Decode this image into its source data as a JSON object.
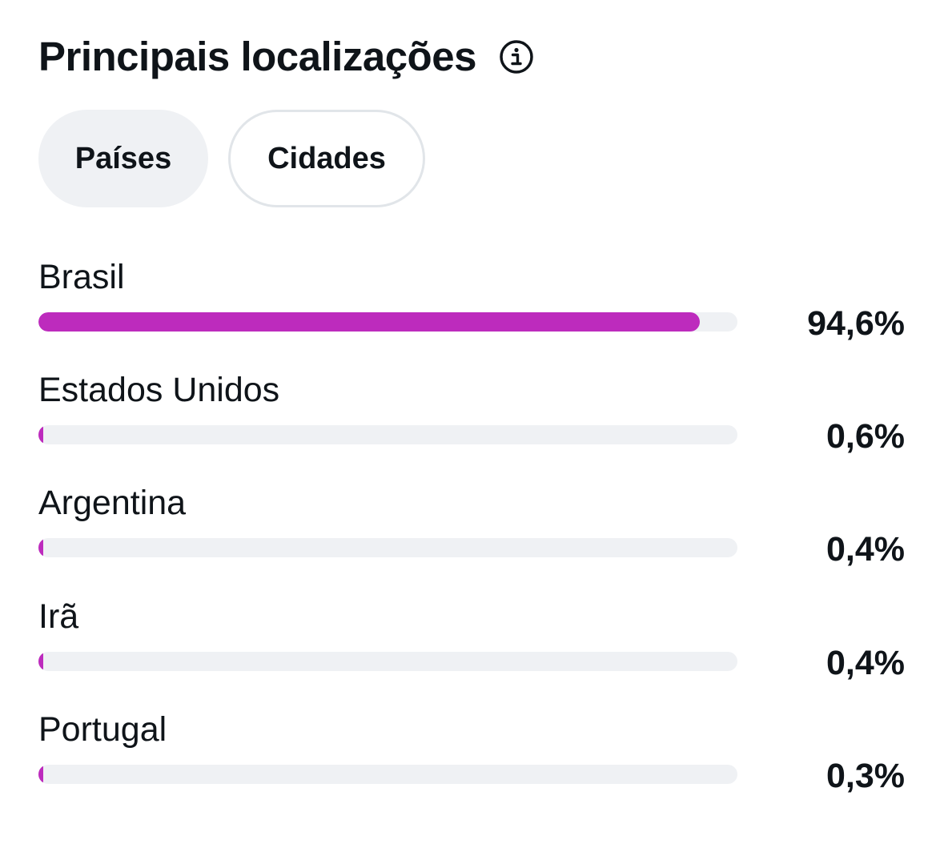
{
  "header": {
    "title": "Principais localizações",
    "info_icon": "info-icon"
  },
  "tabs": [
    {
      "label": "Países",
      "active": true
    },
    {
      "label": "Cidades",
      "active": false
    }
  ],
  "colors": {
    "bar_fill": "#bd2bbd",
    "bar_track": "#eff1f4",
    "active_tab_bg": "#eff1f4",
    "text": "#0f1419"
  },
  "locations": [
    {
      "name": "Brasil",
      "value_label": "94,6%",
      "percent": 94.6
    },
    {
      "name": "Estados Unidos",
      "value_label": "0,6%",
      "percent": 0.6
    },
    {
      "name": "Argentina",
      "value_label": "0,4%",
      "percent": 0.4
    },
    {
      "name": "Irã",
      "value_label": "0,4%",
      "percent": 0.4
    },
    {
      "name": "Portugal",
      "value_label": "0,3%",
      "percent": 0.3
    }
  ]
}
